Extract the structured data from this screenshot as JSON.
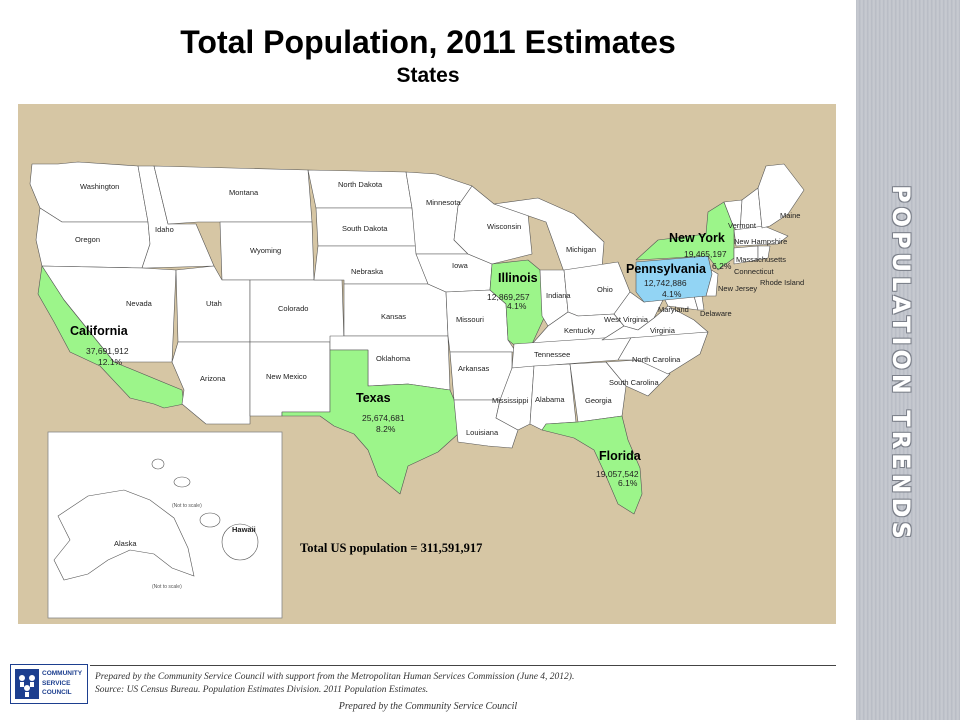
{
  "title": "Total Population, 2011 Estimates",
  "subtitle": "States",
  "sidebar_title": "POPULATION TRENDS",
  "states": {
    "washington": "Washington",
    "oregon": "Oregon",
    "idaho": "Idaho",
    "montana": "Montana",
    "wyoming": "Wyoming",
    "north_dakota": "North Dakota",
    "south_dakota": "South Dakota",
    "nebraska": "Nebraska",
    "minnesota": "Minnesota",
    "wisconsin": "Wisconsin",
    "michigan": "Michigan",
    "iowa": "Iowa",
    "nevada": "Nevada",
    "utah": "Utah",
    "colorado": "Colorado",
    "kansas": "Kansas",
    "missouri": "Missouri",
    "indiana": "Indiana",
    "ohio": "Ohio",
    "kentucky": "Kentucky",
    "west_virginia": "West Virginia",
    "virginia": "Virginia",
    "maryland": "Maryland",
    "delaware": "Delaware",
    "new_jersey": "New Jersey",
    "vermont": "Vermont",
    "new_hampshire": "New Hampshire",
    "massachusetts": "Massachusetts",
    "connecticut": "Connecticut",
    "rhode_island": "Rhode Island",
    "maine": "Maine",
    "arizona": "Arizona",
    "new_mexico": "New Mexico",
    "oklahoma": "Oklahoma",
    "arkansas": "Arkansas",
    "tennessee": "Tennessee",
    "north_carolina": "North Carolina",
    "south_carolina": "South Carolina",
    "mississippi": "Mississippi",
    "alabama": "Alabama",
    "georgia": "Georgia",
    "louisiana": "Louisiana",
    "alaska": "Alaska",
    "hawaii": "Hawaii"
  },
  "highlighted": {
    "california": {
      "name": "California",
      "population": "37,691,912",
      "percent": "12.1%"
    },
    "texas": {
      "name": "Texas",
      "population": "25,674,681",
      "percent": "8.2%"
    },
    "new_york": {
      "name": "New York",
      "population": "19,465,197",
      "percent": "6.2%"
    },
    "florida": {
      "name": "Florida",
      "population": "19,057,542",
      "percent": "6.1%"
    },
    "illinois": {
      "name": "Illinois",
      "population": "12,869,257",
      "percent": "4.1%"
    },
    "pennsylvania": {
      "name": "Pennsylvania",
      "population": "12,742,886",
      "percent": "4.1%"
    }
  },
  "not_to_scale": "(Not to scale)",
  "total_label": "Total US population = 311,591,917",
  "colors": {
    "highlight_green": "#9cf58a",
    "highlight_blue": "#92d4f4",
    "map_background": "#d6c6a4",
    "state_fill": "#ffffff",
    "logo_blue": "#1d3f8f"
  },
  "footer": {
    "logo_text": [
      "COMMUNITY",
      "SERVICE",
      "COUNCIL"
    ],
    "prepared_line": "Prepared by the Community Service Council with support from the Metropolitan Human Services Commission (June 4, 2012).",
    "source_line": "Source:  US Census Bureau. Population Estimates Division. 2011 Population Estimates.",
    "bottom_line": "Prepared by the Community Service Council"
  }
}
